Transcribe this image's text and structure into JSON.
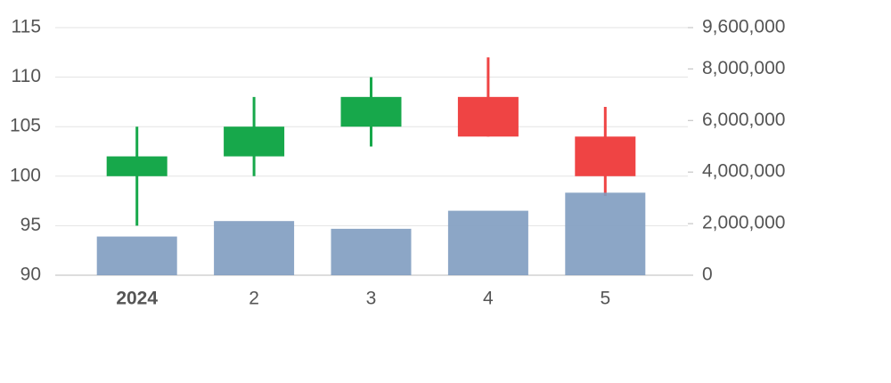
{
  "chart_data": {
    "type": "candlestick",
    "categories": [
      "2024",
      "2",
      "3",
      "4",
      "5"
    ],
    "open": [
      100,
      102,
      105,
      108,
      104
    ],
    "high": [
      105,
      108,
      110,
      112,
      107
    ],
    "low": [
      95,
      100,
      103,
      104,
      98
    ],
    "close": [
      102,
      105,
      108,
      104,
      100
    ],
    "up_color": "#17a84b",
    "down_color": "#ef4444",
    "volume": {
      "values": [
        1500000,
        2100000,
        1800000,
        2500000,
        3200000
      ],
      "color": "#7f9cc0",
      "axis": "y2"
    },
    "ylim": [
      90,
      115
    ],
    "yticks": [
      90,
      95,
      100,
      105,
      110,
      115
    ],
    "y2lim": [
      0,
      9600000
    ],
    "y2ticks": [
      0,
      {
        "value": 2000000,
        "label": "2,000,000"
      },
      {
        "value": 4000000,
        "label": "4,000,000"
      },
      {
        "value": 6000000,
        "label": "6,000,000"
      },
      {
        "value": 8000000,
        "label": "8,000,000"
      },
      {
        "value": 9600000,
        "label": "9,600,000"
      }
    ],
    "grid": true
  }
}
